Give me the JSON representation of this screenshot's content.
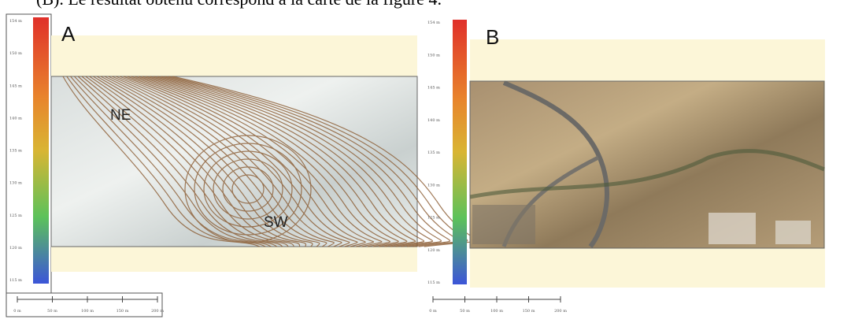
{
  "caption_fragment": "(B). Le résultat obtenu correspond à la carte de la figure 4.",
  "panels": [
    {
      "label": "A",
      "legend_ticks": [
        "154 m",
        "150 m",
        "145 m",
        "140 m",
        "135 m",
        "130 m",
        "125 m",
        "120 m",
        "115 m"
      ],
      "scale_ticks": [
        "0 m",
        "50 m",
        "100 m",
        "150 m",
        "200 m"
      ],
      "annotations": [
        "NE",
        "SW"
      ]
    },
    {
      "label": "B",
      "legend_ticks": [
        "154 m",
        "150 m",
        "145 m",
        "140 m",
        "135 m",
        "130 m",
        "125 m",
        "120 m",
        "115 m"
      ],
      "scale_ticks": [
        "0 m",
        "50 m",
        "100 m",
        "150 m",
        "200 m"
      ]
    }
  ]
}
